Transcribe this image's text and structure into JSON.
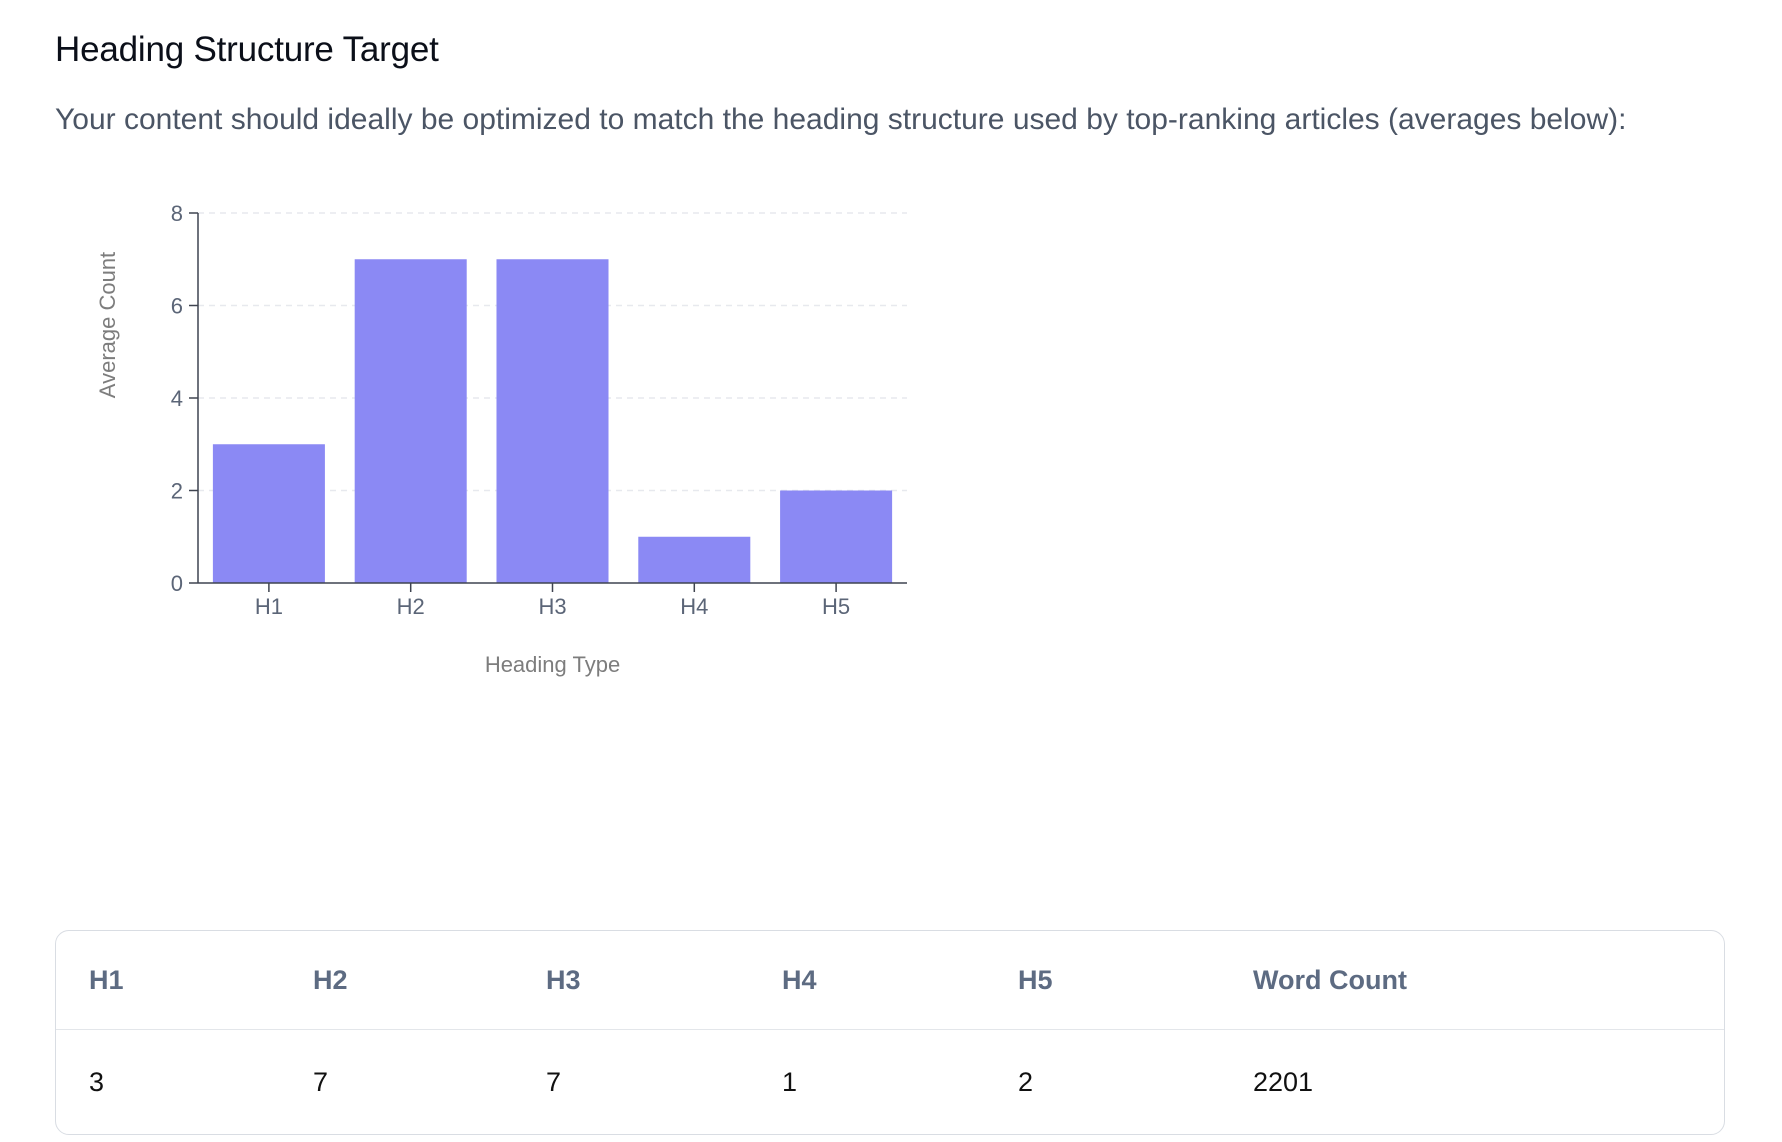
{
  "section": {
    "title": "Heading Structure Target",
    "description": "Your content should ideally be optimized to match the heading structure used by top-ranking articles (averages below):"
  },
  "chart_data": {
    "type": "bar",
    "categories": [
      "H1",
      "H2",
      "H3",
      "H4",
      "H5"
    ],
    "values": [
      3,
      7,
      7,
      1,
      2
    ],
    "xlabel": "Heading Type",
    "ylabel": "Average Count",
    "ylim": [
      0,
      8
    ],
    "yticks": [
      0,
      2,
      4,
      6,
      8
    ],
    "grid": true,
    "colors": {
      "bar": "#8b89f4",
      "axis": "#3f4450",
      "grid": "#e7e9ee"
    }
  },
  "table": {
    "columns": [
      "H1",
      "H2",
      "H3",
      "H4",
      "H5",
      "Word Count"
    ],
    "rows": [
      [
        "3",
        "7",
        "7",
        "1",
        "2",
        "2201"
      ]
    ]
  }
}
